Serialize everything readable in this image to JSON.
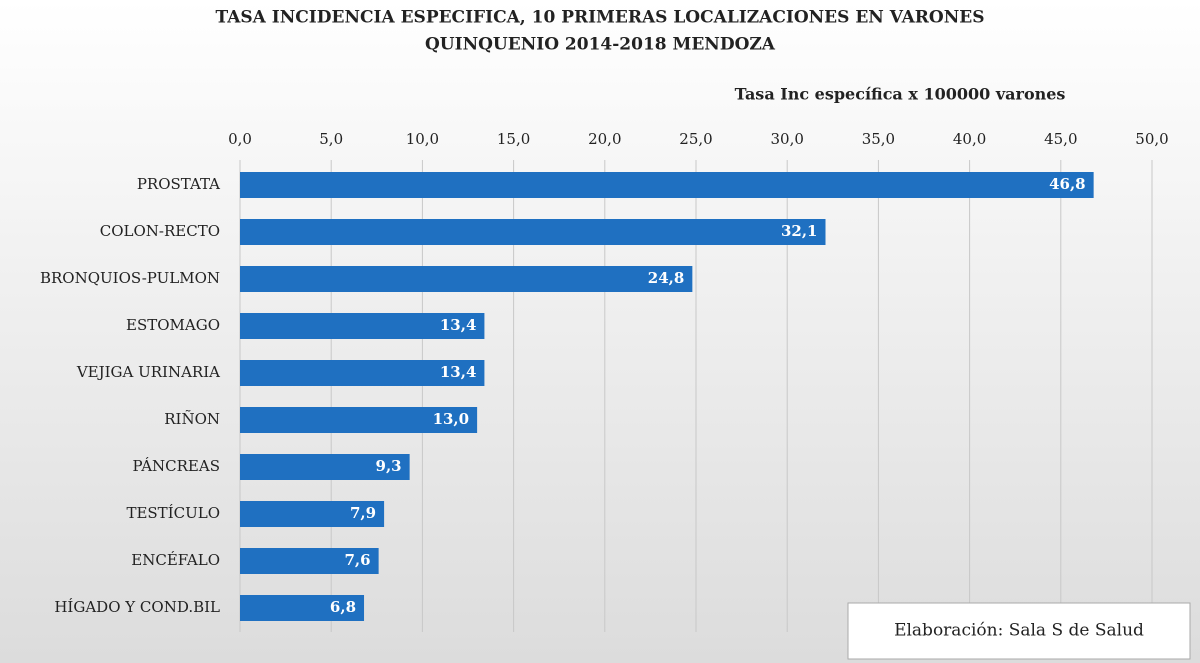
{
  "chart_data": {
    "type": "barh",
    "title": "TASA INCIDENCIA  ESPECIFICA,   10 PRIMERAS  LOCALIZACIONES  EN VARONES",
    "subtitle": "QUINQUENIO  2014-2018 MENDOZA",
    "x_label": "Tasa Inc específica x 100000 varones",
    "note": "Elaboración: Sala S de Salud",
    "categories": [
      "PROSTATA",
      "COLON-RECTO",
      "BRONQUIOS-PULMON",
      "ESTOMAGO",
      "VEJIGA URINARIA",
      "RIÑON",
      "PÁNCREAS",
      "TESTÍCULO",
      "ENCÉFALO",
      "HÍGADO Y COND.BIL"
    ],
    "values": [
      46.8,
      32.1,
      24.8,
      13.4,
      13.4,
      13.0,
      9.3,
      7.9,
      7.6,
      6.8
    ],
    "value_labels": [
      "46,8",
      "32,1",
      "24,8",
      "13,4",
      "13,4",
      "13,0",
      "9,3",
      "7,9",
      "7,6",
      "6,8"
    ],
    "color": "#1f70c1",
    "xlim": [
      0,
      50
    ],
    "xticks": [
      {
        "value": 0,
        "label": "0,0"
      },
      {
        "value": 5,
        "label": "5,0"
      },
      {
        "value": 10,
        "label": "10,0"
      },
      {
        "value": 15,
        "label": "15,0"
      },
      {
        "value": 20,
        "label": "20,0"
      },
      {
        "value": 25,
        "label": "25,0"
      },
      {
        "value": 30,
        "label": "30,0"
      },
      {
        "value": 35,
        "label": "35,0"
      },
      {
        "value": 40,
        "label": "40,0"
      },
      {
        "value": 45,
        "label": "45,0"
      },
      {
        "value": 50,
        "label": "50,0"
      }
    ],
    "grid": true
  }
}
